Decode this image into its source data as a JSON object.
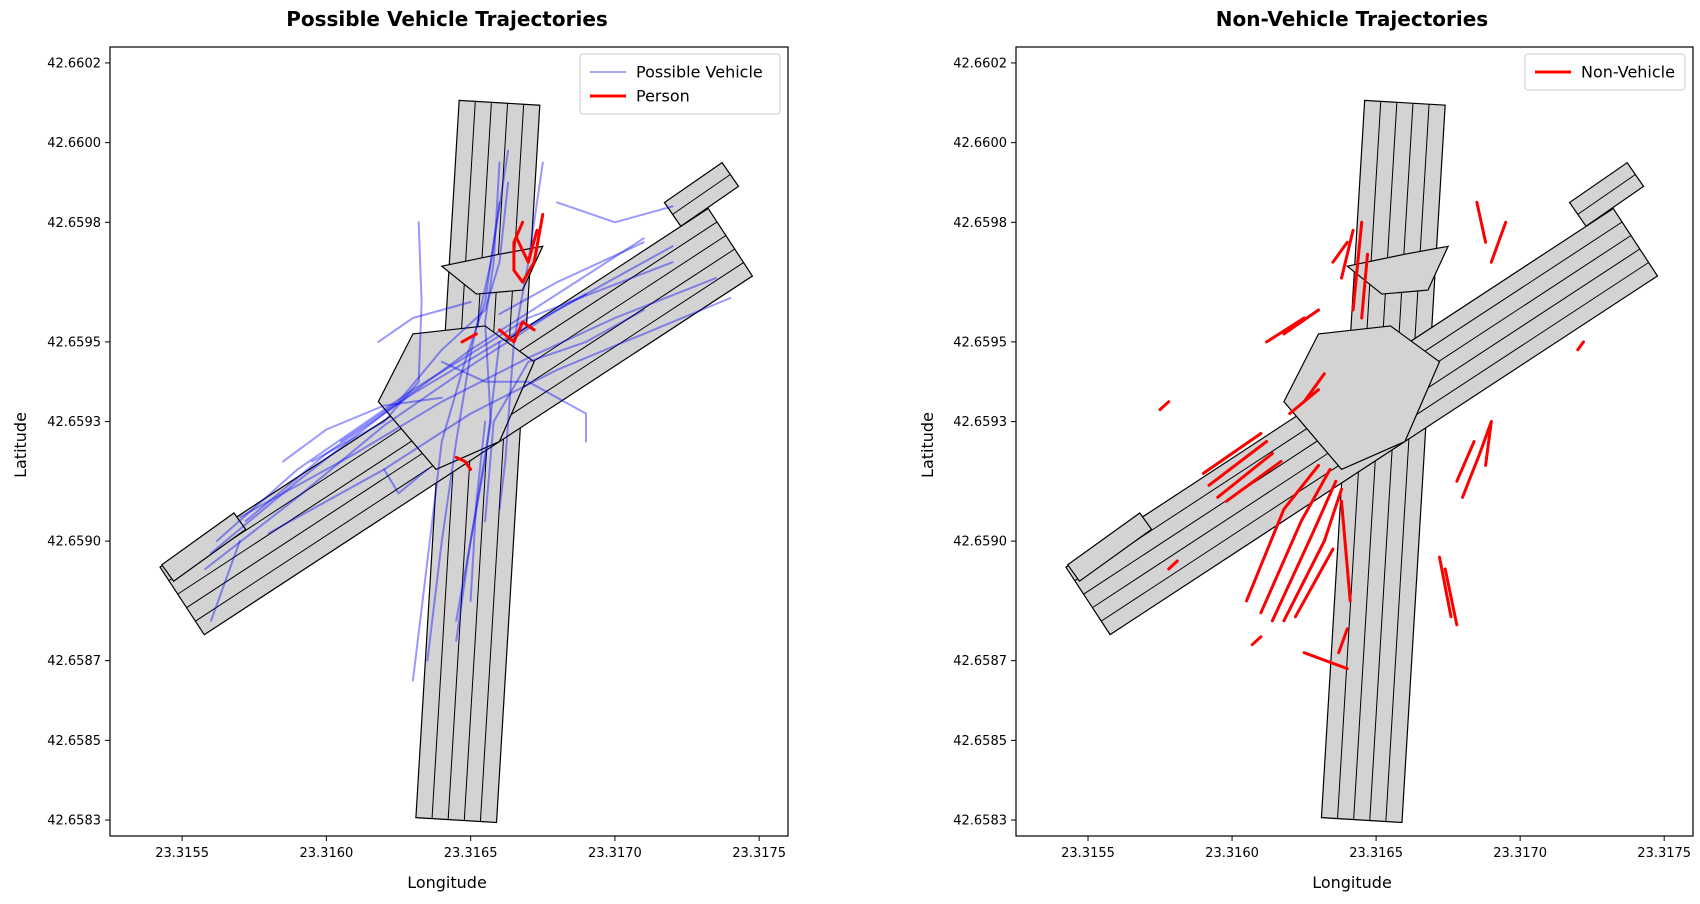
{
  "chart_data": [
    {
      "type": "line",
      "title": "Possible Vehicle Trajectories",
      "xlabel": "Longitude",
      "ylabel": "Latitude",
      "xlim": [
        23.31525,
        23.3176
      ],
      "ylim": [
        42.65826,
        42.66024
      ],
      "xticks": [
        "23.3155",
        "23.3160",
        "23.3165",
        "23.3170",
        "23.3175"
      ],
      "yticks": [
        "42.6602",
        "42.6600",
        "42.6598",
        "42.6595",
        "42.6593",
        "42.6590",
        "42.6587",
        "42.6585",
        "42.6583"
      ],
      "legend": {
        "placement": "top-right",
        "entries": [
          {
            "label": "Possible Vehicle",
            "color": "#0000ff",
            "alpha": 0.35
          },
          {
            "label": "Person",
            "color": "#ff0000"
          }
        ]
      },
      "series": [
        {
          "name": "Possible Vehicle",
          "color": "#0000ff",
          "lines": [
            [
              [
                23.3156,
                42.65897
              ],
              [
                23.3159,
                42.65915
              ],
              [
                23.3162,
                42.65932
              ],
              [
                23.3165,
                42.65948
              ],
              [
                23.3168,
                42.65962
              ],
              [
                23.3171,
                42.65976
              ]
            ],
            [
              [
                23.31558,
                42.65893
              ],
              [
                23.3159,
                42.65911
              ],
              [
                23.3162,
                42.65929
              ],
              [
                23.3165,
                42.65944
              ],
              [
                23.3168,
                42.65958
              ],
              [
                23.3172,
                42.65974
              ]
            ],
            [
              [
                23.31562,
                42.659
              ],
              [
                23.3159,
                42.65918
              ],
              [
                23.3163,
                42.65938
              ],
              [
                23.3167,
                42.65956
              ],
              [
                23.3172,
                42.6597
              ]
            ],
            [
              [
                23.31572,
                42.65905
              ],
              [
                23.316,
                42.65922
              ],
              [
                23.3163,
                42.65937
              ],
              [
                23.3166,
                42.6595
              ],
              [
                23.3169,
                42.65962
              ]
            ],
            [
              [
                23.3174,
                42.65961
              ],
              [
                23.3171,
                42.65952
              ],
              [
                23.3168,
                42.65943
              ],
              [
                23.3165,
                42.65932
              ],
              [
                23.3162,
                42.65918
              ],
              [
                23.3158,
                42.65902
              ]
            ],
            [
              [
                23.31735,
                42.65966
              ],
              [
                23.317,
                42.65956
              ],
              [
                23.3167,
                42.65946
              ],
              [
                23.3164,
                42.65935
              ],
              [
                23.3161,
                42.65922
              ],
              [
                23.3157,
                42.65906
              ]
            ],
            [
              [
                23.3171,
                42.65975
              ],
              [
                23.3168,
                42.65965
              ],
              [
                23.3166,
                42.65957
              ]
            ],
            [
              [
                23.3163,
                42.65865
              ],
              [
                23.31635,
                42.65895
              ],
              [
                23.3164,
                42.65925
              ],
              [
                23.31648,
                42.65945
              ],
              [
                23.31655,
                42.6596
              ],
              [
                23.3166,
                42.65985
              ]
            ],
            [
              [
                23.31635,
                42.6587
              ],
              [
                23.3164,
                42.659
              ],
              [
                23.31645,
                42.65925
              ],
              [
                23.3165,
                42.65947
              ],
              [
                23.31657,
                42.6597
              ],
              [
                23.31663,
                42.65998
              ]
            ],
            [
              [
                23.31645,
                42.65875
              ],
              [
                23.3165,
                42.659
              ],
              [
                23.31655,
                42.6592
              ],
              [
                23.3166,
                42.6595
              ]
            ],
            [
              [
                23.3165,
                42.65885
              ],
              [
                23.31652,
                42.6591
              ],
              [
                23.31655,
                42.6593
              ]
            ],
            [
              [
                23.3166,
                42.65995
              ],
              [
                23.31658,
                42.6597
              ],
              [
                23.31655,
                42.65955
              ],
              [
                23.31657,
                42.6593
              ],
              [
                23.3165,
                42.659
              ],
              [
                23.31645,
                42.6588
              ]
            ],
            [
              [
                23.31675,
                42.65995
              ],
              [
                23.3167,
                42.6597
              ],
              [
                23.31665,
                42.6595
              ],
              [
                23.31662,
                42.6592
              ],
              [
                23.3166,
                42.65908
              ]
            ],
            [
              [
                23.31632,
                42.6598
              ],
              [
                23.31633,
                42.6596
              ],
              [
                23.31632,
                42.6594
              ],
              [
                23.3162,
                42.6593
              ],
              [
                23.31595,
                42.6592
              ]
            ],
            [
              [
                23.31605,
                42.65925
              ],
              [
                23.31625,
                42.65935
              ],
              [
                23.3164,
                42.65948
              ],
              [
                23.31655,
                42.65958
              ],
              [
                23.3166,
                42.6597
              ],
              [
                23.31663,
                42.6599
              ]
            ],
            [
              [
                23.31655,
                42.65905
              ],
              [
                23.31658,
                42.6593
              ],
              [
                23.3167,
                42.65945
              ],
              [
                23.3169,
                42.6595
              ],
              [
                23.3171,
                42.65958
              ]
            ],
            [
              [
                23.3164,
                42.65945
              ],
              [
                23.31655,
                42.6594
              ],
              [
                23.3167,
                42.6594
              ],
              [
                23.3169,
                42.65932
              ],
              [
                23.3169,
                42.65925
              ]
            ],
            [
              [
                23.31585,
                42.6592
              ],
              [
                23.316,
                42.65928
              ],
              [
                23.3162,
                42.65934
              ],
              [
                23.3164,
                42.65936
              ]
            ],
            [
              [
                23.3162,
                42.65918
              ],
              [
                23.31625,
                42.65912
              ],
              [
                23.31635,
                42.65918
              ]
            ],
            [
              [
                23.3156,
                42.6588
              ],
              [
                23.31565,
                42.6589
              ],
              [
                23.3157,
                42.659
              ]
            ],
            [
              [
                23.31618,
                42.6595
              ],
              [
                23.3163,
                42.65956
              ],
              [
                23.3165,
                42.6596
              ]
            ],
            [
              [
                23.3168,
                42.65985
              ],
              [
                23.317,
                42.6598
              ],
              [
                23.3172,
                42.65984
              ]
            ]
          ]
        },
        {
          "name": "Person",
          "color": "#ff0000",
          "lines": [
            [
              [
                23.31668,
                42.6598
              ],
              [
                23.31665,
                42.65975
              ],
              [
                23.31665,
                42.65968
              ],
              [
                23.31668,
                42.65965
              ],
              [
                23.31672,
                42.6597
              ],
              [
                23.31675,
                42.65982
              ]
            ],
            [
              [
                23.31666,
                42.65976
              ],
              [
                23.3167,
                42.6597
              ],
              [
                23.31673,
                42.65978
              ]
            ],
            [
              [
                23.3166,
                42.65953
              ],
              [
                23.31665,
                42.6595
              ],
              [
                23.31668,
                42.65955
              ],
              [
                23.31672,
                42.65953
              ]
            ],
            [
              [
                23.31647,
                42.6595
              ],
              [
                23.31652,
                42.65952
              ]
            ],
            [
              [
                23.31645,
                42.65921
              ],
              [
                23.31648,
                42.6592
              ],
              [
                23.3165,
                42.65918
              ]
            ]
          ]
        }
      ]
    },
    {
      "type": "line",
      "title": "Non-Vehicle Trajectories",
      "xlabel": "Longitude",
      "ylabel": "Latitude",
      "xlim": [
        23.31525,
        23.3176
      ],
      "ylim": [
        42.65826,
        42.66024
      ],
      "xticks": [
        "23.3155",
        "23.3160",
        "23.3165",
        "23.3170",
        "23.3175"
      ],
      "yticks": [
        "42.6602",
        "42.6600",
        "42.6598",
        "42.6595",
        "42.6593",
        "42.6590",
        "42.6587",
        "42.6585",
        "42.6583"
      ],
      "legend": {
        "placement": "top-right",
        "entries": [
          {
            "label": "Non-Vehicle",
            "color": "#ff0000"
          }
        ]
      },
      "series": [
        {
          "name": "Non-Vehicle",
          "color": "#ff0000",
          "lines": [
            [
              [
                23.3159,
                42.65917
              ],
              [
                23.3161,
                42.65927
              ]
            ],
            [
              [
                23.31592,
                42.65914
              ],
              [
                23.31612,
                42.65925
              ]
            ],
            [
              [
                23.31595,
                42.65911
              ],
              [
                23.31614,
                42.65922
              ]
            ],
            [
              [
                23.31598,
                42.6591
              ],
              [
                23.31617,
                42.6592
              ]
            ],
            [
              [
                23.3162,
                42.65932
              ],
              [
                23.3163,
                42.65938
              ]
            ],
            [
              [
                23.31625,
                42.65935
              ],
              [
                23.31632,
                42.65942
              ]
            ],
            [
              [
                23.31612,
                42.6595
              ],
              [
                23.31625,
                42.65956
              ]
            ],
            [
              [
                23.31618,
                42.65952
              ],
              [
                23.3163,
                42.65958
              ]
            ],
            [
              [
                23.31635,
                42.6597
              ],
              [
                23.3164,
                42.65975
              ]
            ],
            [
              [
                23.31638,
                42.65966
              ],
              [
                23.31642,
                42.65978
              ]
            ],
            [
              [
                23.31642,
                42.65958
              ],
              [
                23.31645,
                42.6598
              ]
            ],
            [
              [
                23.31645,
                42.65956
              ],
              [
                23.31647,
                42.65972
              ]
            ],
            [
              [
                23.31605,
                42.65885
              ],
              [
                23.31618,
                42.65908
              ],
              [
                23.3163,
                42.65919
              ]
            ],
            [
              [
                23.3161,
                42.65882
              ],
              [
                23.31624,
                42.65905
              ],
              [
                23.31634,
                42.65918
              ]
            ],
            [
              [
                23.31614,
                42.6588
              ],
              [
                23.31628,
                42.65902
              ],
              [
                23.31636,
                42.65915
              ]
            ],
            [
              [
                23.31618,
                42.6588
              ],
              [
                23.31632,
                42.659
              ],
              [
                23.31638,
                42.65913
              ]
            ],
            [
              [
                23.31622,
                42.65881
              ],
              [
                23.31635,
                42.65898
              ]
            ],
            [
              [
                23.31638,
                42.6591
              ],
              [
                23.31641,
                42.65885
              ]
            ],
            [
              [
                23.3164,
                42.65878
              ],
              [
                23.31637,
                42.65872
              ]
            ],
            [
              [
                23.31625,
                42.65872
              ],
              [
                23.3164,
                42.65868
              ]
            ],
            [
              [
                23.31672,
                42.65896
              ],
              [
                23.31676,
                42.65881
              ]
            ],
            [
              [
                23.31674,
                42.65893
              ],
              [
                23.31678,
                42.65879
              ]
            ],
            [
              [
                23.31678,
                42.65915
              ],
              [
                23.31684,
                42.65925
              ]
            ],
            [
              [
                23.3168,
                42.65911
              ],
              [
                23.31686,
                42.65922
              ],
              [
                23.3169,
                42.6593
              ]
            ],
            [
              [
                23.31688,
                42.65919
              ],
              [
                23.3169,
                42.6593
              ]
            ],
            [
              [
                23.31685,
                42.65985
              ],
              [
                23.31688,
                42.65975
              ]
            ],
            [
              [
                23.3169,
                42.6597
              ],
              [
                23.31695,
                42.6598
              ]
            ],
            [
              [
                23.3172,
                42.65948
              ],
              [
                23.31722,
                42.6595
              ]
            ],
            [
              [
                23.31575,
                42.65933
              ],
              [
                23.31578,
                42.65935
              ]
            ],
            [
              [
                23.31578,
                42.65893
              ],
              [
                23.31581,
                42.65895
              ]
            ],
            [
              [
                23.31607,
                42.65874
              ],
              [
                23.3161,
                42.65876
              ]
            ]
          ]
        }
      ]
    }
  ]
}
